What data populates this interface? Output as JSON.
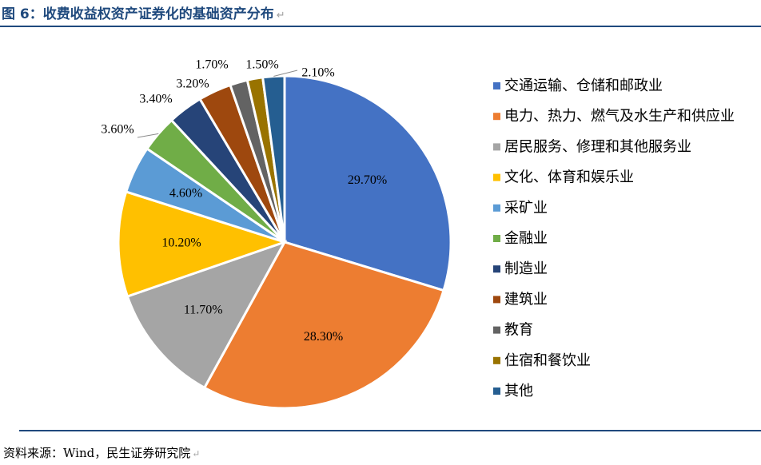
{
  "title": "图 6：收费收益权资产证券化的基础资产分布",
  "source": "资料来源：Wind，民生证券研究院",
  "chart_data": {
    "type": "pie",
    "categories": [
      "交通运输、仓储和邮政业",
      "电力、热力、燃气及水生产和供应业",
      "居民服务、修理和其他服务业",
      "文化、体育和娱乐业",
      "采矿业",
      "金融业",
      "制造业",
      "建筑业",
      "教育",
      "住宿和餐饮业",
      "其他"
    ],
    "values": [
      29.7,
      28.3,
      11.7,
      10.2,
      4.6,
      3.6,
      3.4,
      3.2,
      1.7,
      1.5,
      2.1
    ],
    "labels": [
      "29.70%",
      "28.30%",
      "11.70%",
      "10.20%",
      "4.60%",
      "3.60%",
      "3.40%",
      "3.20%",
      "1.70%",
      "1.50%",
      "2.10%"
    ],
    "colors": [
      "#4472c4",
      "#ed7d31",
      "#a5a5a5",
      "#ffc000",
      "#5b9bd5",
      "#70ad47",
      "#264478",
      "#9e480e",
      "#636363",
      "#997300",
      "#255e91"
    ],
    "legend_position": "right"
  }
}
